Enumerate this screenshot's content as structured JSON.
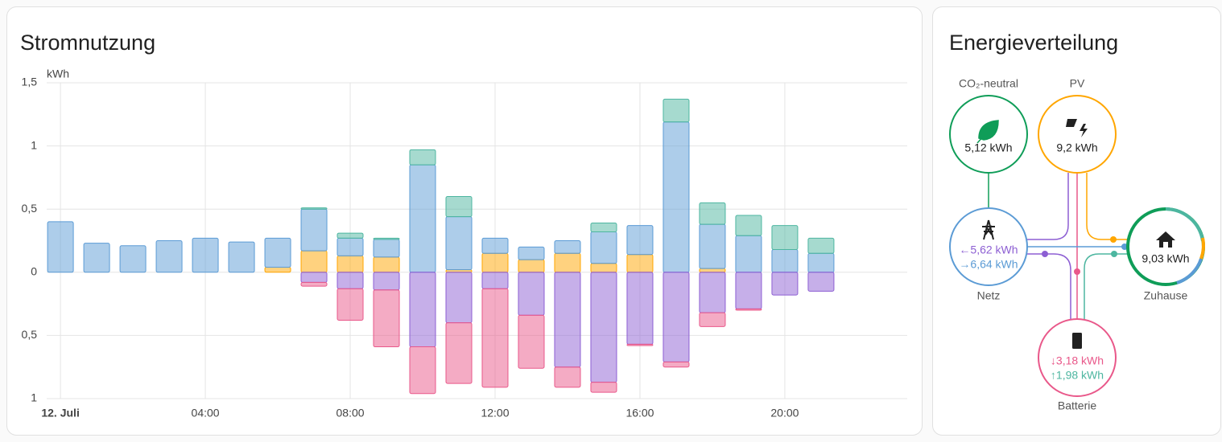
{
  "chart_data": {
    "type": "bar",
    "title": "Stromnutzung",
    "y_label": "kWh",
    "x": [
      0,
      1,
      2,
      3,
      4,
      5,
      6,
      7,
      8,
      9,
      10,
      11,
      12,
      13,
      14,
      15,
      16,
      17,
      18,
      19,
      20,
      21
    ],
    "xlim": [
      -0.38,
      23.38
    ],
    "xticks": [
      {
        "value": 0,
        "label": "12. Juli"
      },
      {
        "value": 4,
        "label": "04:00"
      },
      {
        "value": 8,
        "label": "08:00"
      },
      {
        "value": 12,
        "label": "12:00"
      },
      {
        "value": 16,
        "label": "16:00"
      },
      {
        "value": 20,
        "label": "20:00"
      }
    ],
    "ylim": [
      -1,
      1.5
    ],
    "yticks": [
      {
        "value": -1,
        "label": "1"
      },
      {
        "value": -0.5,
        "label": "0,5"
      },
      0,
      {
        "value": 0.5,
        "label": "0,5"
      },
      1,
      {
        "value": 1.5,
        "label": "1,5"
      }
    ],
    "grid": true,
    "stacked": true,
    "series": [
      {
        "color": "#ffa600",
        "values": [
          0,
          0,
          0,
          0,
          0,
          0,
          0.04,
          0.17,
          0.13,
          0.12,
          0,
          0.02,
          0.15,
          0.1,
          0.15,
          0.07,
          0.14,
          0,
          0.03,
          0,
          0,
          0
        ]
      },
      {
        "color": "#5b9bd5",
        "values": [
          0.4,
          0.23,
          0.21,
          0.25,
          0.27,
          0.24,
          0.23,
          0.33,
          0.14,
          0.14,
          0.85,
          0.42,
          0.12,
          0.1,
          0.1,
          0.25,
          0.23,
          1.19,
          0.35,
          0.29,
          0.18,
          0.15
        ]
      },
      {
        "color": "#4db6a0",
        "values": [
          0,
          0,
          0,
          0,
          0,
          0,
          0,
          0.01,
          0.04,
          0.01,
          0.12,
          0.16,
          0,
          0,
          0,
          0.07,
          0,
          0.18,
          0.17,
          0.16,
          0.19,
          0.12
        ]
      },
      {
        "color": "#8d5fd3",
        "values": [
          0,
          0,
          0,
          0,
          0,
          0,
          0,
          -0.08,
          -0.13,
          -0.14,
          -0.59,
          -0.4,
          -0.13,
          -0.34,
          -0.75,
          -0.87,
          -0.57,
          -0.71,
          -0.32,
          -0.29,
          -0.18,
          -0.15
        ]
      },
      {
        "color": "#e9588a",
        "values": [
          0,
          0,
          0,
          0,
          0,
          0,
          0,
          -0.03,
          -0.25,
          -0.45,
          -0.37,
          -0.48,
          -0.78,
          -0.42,
          -0.16,
          -0.08,
          -0.01,
          -0.04,
          -0.11,
          -0.01,
          0,
          0
        ]
      }
    ]
  },
  "energy_distribution": {
    "title": "Energieverteilung",
    "nodes": {
      "co2": {
        "label": "CO₂-neutral",
        "value": "5,12 kWh"
      },
      "pv": {
        "label": "PV",
        "value": "9,2 kWh"
      },
      "grid": {
        "label": "Netz",
        "in": "←5,62 kWh",
        "out": "→6,64 kWh"
      },
      "home": {
        "label": "Zuhause",
        "value": "9,03 kWh"
      },
      "battery": {
        "label": "Batterie",
        "in": "↓3,18 kWh",
        "out": "↑1,98 kWh"
      }
    }
  }
}
